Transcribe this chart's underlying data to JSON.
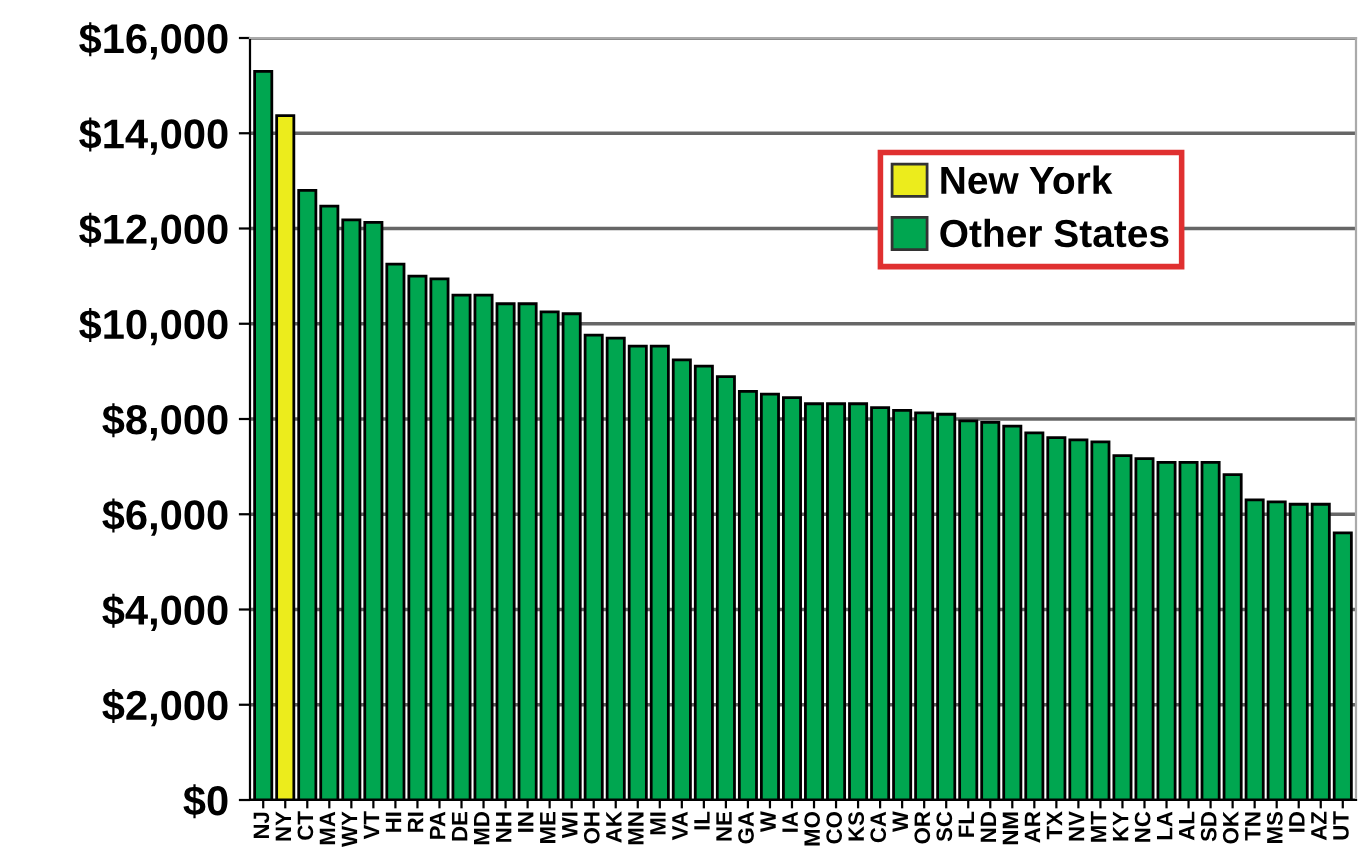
{
  "chart_data": {
    "type": "bar",
    "categories": [
      "NJ",
      "NY",
      "CT",
      "MA",
      "WY",
      "VT",
      "HI",
      "RI",
      "PA",
      "DE",
      "MD",
      "NH",
      "IN",
      "ME",
      "WI",
      "OH",
      "AK",
      "MN",
      "MI",
      "VA",
      "IL",
      "NE",
      "GA",
      "W",
      "IA",
      "MO",
      "CO",
      "KS",
      "CA",
      "W",
      "OR",
      "SC",
      "FL",
      "ND",
      "NM",
      "AR",
      "TX",
      "NV",
      "MT",
      "KY",
      "NC",
      "LA",
      "AL",
      "SD",
      "OK",
      "TN",
      "MS",
      "ID",
      "AZ",
      "UT"
    ],
    "series": [
      {
        "name": "New York",
        "color": "#ecec1c",
        "values": [
          null,
          14370,
          null,
          null,
          null,
          null,
          null,
          null,
          null,
          null,
          null,
          null,
          null,
          null,
          null,
          null,
          null,
          null,
          null,
          null,
          null,
          null,
          null,
          null,
          null,
          null,
          null,
          null,
          null,
          null,
          null,
          null,
          null,
          null,
          null,
          null,
          null,
          null,
          null,
          null,
          null,
          null,
          null,
          null,
          null,
          null,
          null,
          null,
          null,
          null
        ]
      },
      {
        "name": "Other States",
        "color": "#00a650",
        "values": [
          15300,
          null,
          12800,
          12470,
          12180,
          12130,
          11250,
          11000,
          10940,
          10600,
          10600,
          10420,
          10420,
          10250,
          10210,
          9760,
          9700,
          9530,
          9530,
          9240,
          9110,
          8890,
          8580,
          8520,
          8450,
          8320,
          8320,
          8320,
          8240,
          8180,
          8130,
          8100,
          7960,
          7930,
          7850,
          7710,
          7610,
          7560,
          7520,
          7230,
          7170,
          7090,
          7090,
          7090,
          6830,
          6300,
          6260,
          6210,
          6210,
          5610
        ]
      }
    ],
    "ylim": [
      0,
      16000
    ],
    "yticks": [
      {
        "value": 0,
        "label": "$0"
      },
      {
        "value": 2000,
        "label": "$2,000"
      },
      {
        "value": 4000,
        "label": "$4,000"
      },
      {
        "value": 6000,
        "label": "$6,000"
      },
      {
        "value": 8000,
        "label": "$8,000"
      },
      {
        "value": 10000,
        "label": "$10,000"
      },
      {
        "value": 12000,
        "label": "$12,000"
      },
      {
        "value": 14000,
        "label": "$14,000"
      },
      {
        "value": 16000,
        "label": "$16,000"
      }
    ],
    "grid": "y",
    "legend": "top right"
  }
}
